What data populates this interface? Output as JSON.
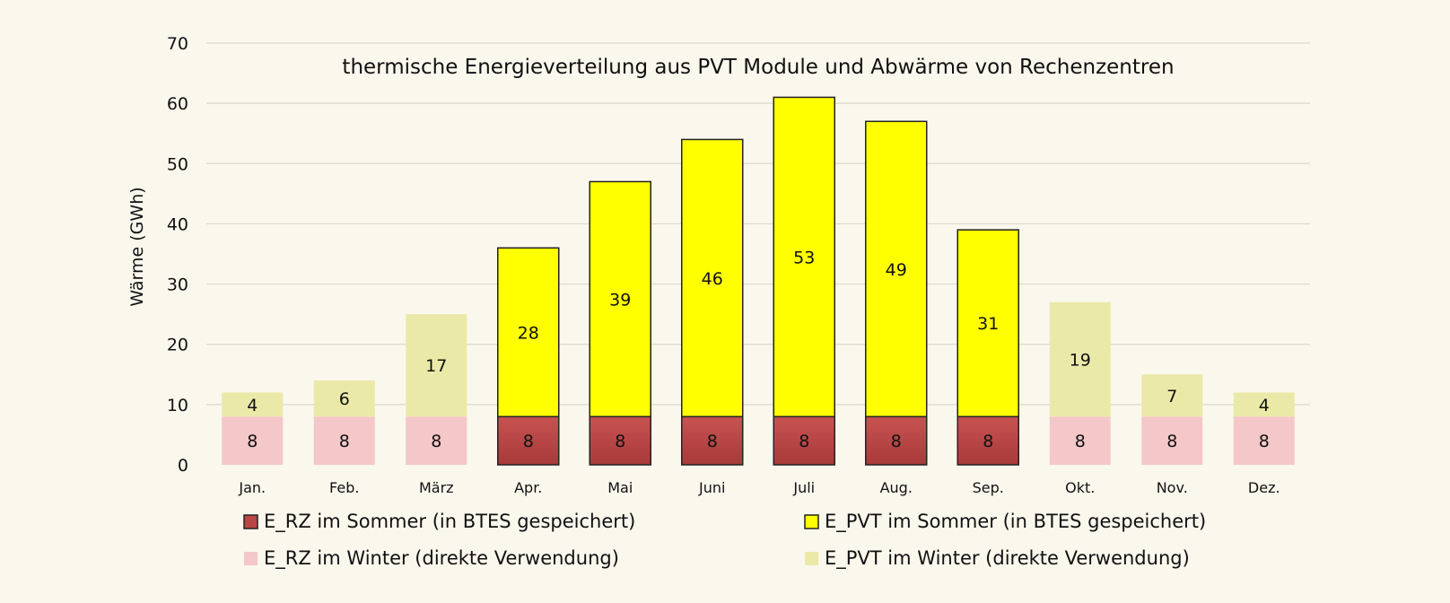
{
  "chart_data": {
    "type": "bar",
    "stacked": true,
    "title": "thermische Energieverteilung aus PVT Module und Abwärme von Rechenzentren",
    "xlabel": "",
    "ylabel": "Wärme (GWh)",
    "ylim": [
      0,
      70
    ],
    "yticks": [
      0,
      10,
      20,
      30,
      40,
      50,
      60,
      70
    ],
    "grid": true,
    "legend_position": "bottom",
    "categories": [
      "Jan.",
      "Feb.",
      "März",
      "Apr.",
      "Mai",
      "Juni",
      "Juli",
      "Aug.",
      "Sep.",
      "Okt.",
      "Nov.",
      "Dez."
    ],
    "summer_months": [
      false,
      false,
      false,
      true,
      true,
      true,
      true,
      true,
      true,
      false,
      false,
      false
    ],
    "base_values": [
      8,
      8,
      8,
      8,
      8,
      8,
      8,
      8,
      8,
      8,
      8,
      8
    ],
    "top_values": [
      4,
      6,
      17,
      28,
      39,
      46,
      53,
      49,
      31,
      19,
      7,
      4
    ],
    "series": [
      {
        "name": "E_RZ im Sommer (in BTES gespeichert)",
        "color": "#b94545",
        "edge": "#222222"
      },
      {
        "name": "E_PVT im Sommer (in BTES gespeichert)",
        "color": "#ffff00",
        "edge": "#222222"
      },
      {
        "name": "E_RZ im Winter (direkte Verwendung)",
        "color": "#f4c7c9",
        "edge": "none"
      },
      {
        "name": "E_PVT im Winter (direkte Verwendung)",
        "color": "#ebe9a8",
        "edge": "none"
      }
    ]
  }
}
